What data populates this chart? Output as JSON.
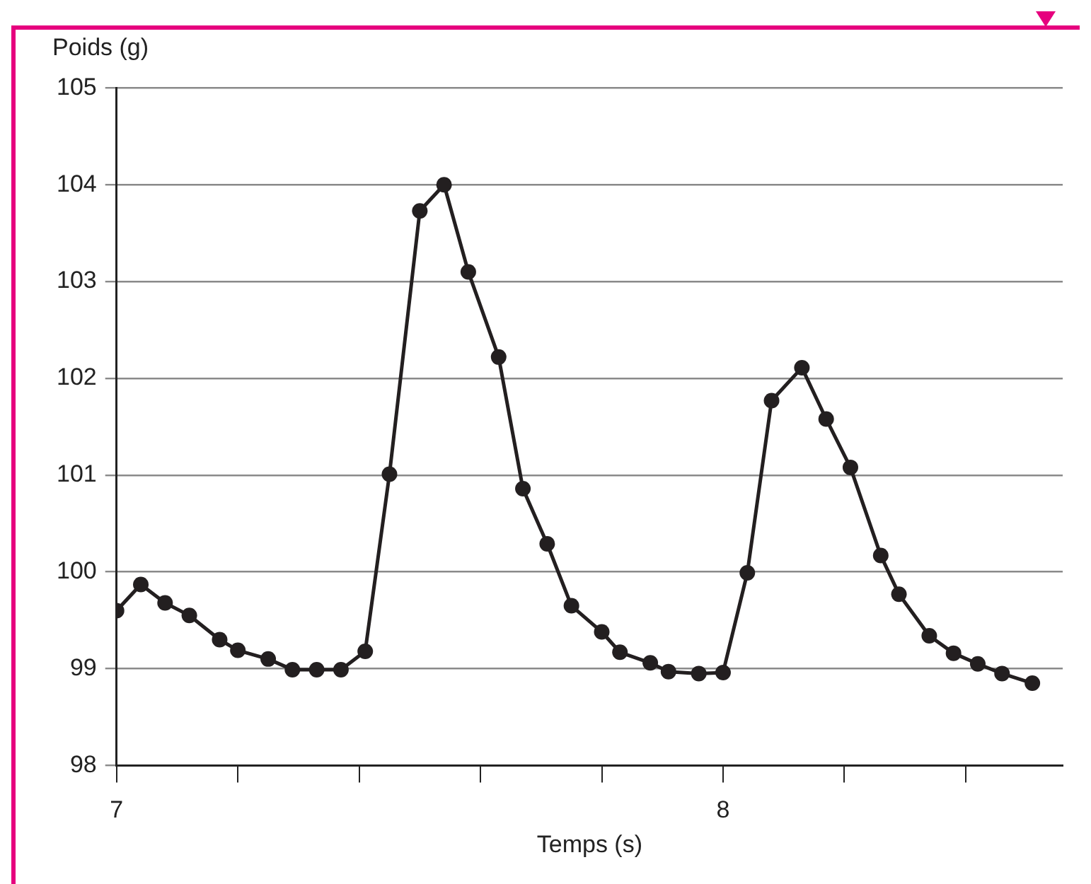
{
  "chart_data": {
    "type": "line",
    "xlabel": "Temps (s)",
    "ylabel": "Poids (g)",
    "x": [
      7.0,
      7.04,
      7.08,
      7.12,
      7.17,
      7.2,
      7.25,
      7.29,
      7.33,
      7.37,
      7.41,
      7.45,
      7.5,
      7.54,
      7.58,
      7.63,
      7.67,
      7.71,
      7.75,
      7.8,
      7.83,
      7.88,
      7.91,
      7.96,
      8.0,
      8.04,
      8.08,
      8.13,
      8.17,
      8.21,
      8.26,
      8.29,
      8.34,
      8.38,
      8.42,
      8.46,
      8.51
    ],
    "series": [
      {
        "color": "#231f20",
        "values": [
          99.6,
          99.87,
          99.68,
          99.55,
          99.3,
          99.19,
          99.1,
          98.99,
          98.99,
          98.99,
          99.18,
          101.01,
          103.73,
          104.0,
          103.1,
          102.22,
          100.86,
          100.29,
          99.65,
          99.38,
          99.17,
          99.06,
          98.97,
          98.95,
          98.96,
          99.99,
          101.77,
          102.11,
          101.58,
          101.08,
          100.17,
          99.77,
          99.34,
          99.16,
          99.05,
          98.95,
          98.85
        ]
      }
    ],
    "xlim": [
      7,
      8.56
    ],
    "xticks": [
      7,
      {
        "value": 7.2,
        "label": null
      },
      {
        "value": 7.4,
        "label": null
      },
      {
        "value": 7.6,
        "label": null
      },
      {
        "value": 7.8,
        "label": null
      },
      8,
      {
        "value": 8.2,
        "label": null
      },
      {
        "value": 8.4,
        "label": null
      }
    ],
    "ylim": [
      98,
      105
    ],
    "yticks": [
      98,
      99,
      100,
      101,
      102,
      103,
      104,
      105
    ],
    "grid": "y",
    "legend": false,
    "marker": "circle",
    "line_style": "solid"
  }
}
